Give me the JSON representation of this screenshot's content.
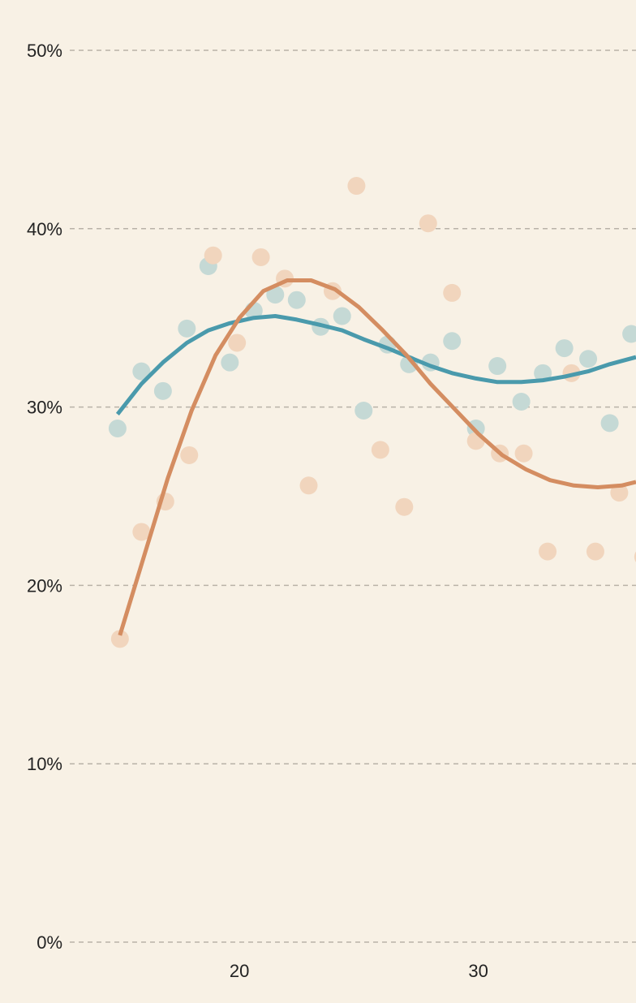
{
  "chart_data": {
    "type": "scatter",
    "title": "",
    "xlabel": "",
    "ylabel": "",
    "xlim": [
      12.9,
      36.6
    ],
    "ylim": [
      0,
      50
    ],
    "x_ticks": [
      20,
      30
    ],
    "y_ticks": [
      0,
      10,
      20,
      30,
      40,
      50
    ],
    "y_tick_format": "percent",
    "grid": "horizontal-dashed",
    "legend": "none",
    "series": [
      {
        "color": "#4a9aac",
        "point_color": "#c5d9d5",
        "points": [
          [
            14.9,
            28.8
          ],
          [
            15.9,
            32.0
          ],
          [
            16.8,
            30.9
          ],
          [
            17.8,
            34.4
          ],
          [
            18.7,
            37.9
          ],
          [
            19.6,
            32.5
          ],
          [
            20.6,
            35.4
          ],
          [
            21.5,
            36.3
          ],
          [
            22.4,
            36.0
          ],
          [
            23.4,
            34.5
          ],
          [
            24.3,
            35.1
          ],
          [
            25.2,
            29.8
          ],
          [
            26.2,
            33.5
          ],
          [
            27.1,
            32.4
          ],
          [
            28.0,
            32.5
          ],
          [
            28.9,
            33.7
          ],
          [
            29.9,
            28.8
          ],
          [
            30.8,
            32.3
          ],
          [
            31.8,
            30.3
          ],
          [
            32.7,
            31.9
          ],
          [
            33.6,
            33.3
          ],
          [
            34.6,
            32.7
          ],
          [
            35.5,
            29.1
          ],
          [
            36.4,
            34.1
          ]
        ],
        "fit": [
          [
            14.9,
            29.6
          ],
          [
            15.9,
            31.3
          ],
          [
            16.8,
            32.5
          ],
          [
            17.8,
            33.6
          ],
          [
            18.7,
            34.3
          ],
          [
            19.6,
            34.7
          ],
          [
            20.6,
            35.0
          ],
          [
            21.5,
            35.1
          ],
          [
            22.4,
            34.9
          ],
          [
            23.4,
            34.6
          ],
          [
            24.3,
            34.3
          ],
          [
            25.2,
            33.8
          ],
          [
            26.2,
            33.3
          ],
          [
            27.1,
            32.8
          ],
          [
            28.0,
            32.3
          ],
          [
            28.9,
            31.9
          ],
          [
            29.9,
            31.6
          ],
          [
            30.8,
            31.4
          ],
          [
            31.8,
            31.4
          ],
          [
            32.7,
            31.5
          ],
          [
            33.6,
            31.7
          ],
          [
            34.6,
            32.0
          ],
          [
            35.5,
            32.4
          ],
          [
            36.6,
            32.8
          ]
        ]
      },
      {
        "color": "#d48d61",
        "point_color": "#f1d5bd",
        "points": [
          [
            15.0,
            17.0
          ],
          [
            15.9,
            23.0
          ],
          [
            16.9,
            24.7
          ],
          [
            17.9,
            27.3
          ],
          [
            18.9,
            38.5
          ],
          [
            19.9,
            33.6
          ],
          [
            20.9,
            38.4
          ],
          [
            21.9,
            37.2
          ],
          [
            22.9,
            25.6
          ],
          [
            23.9,
            36.5
          ],
          [
            24.9,
            42.4
          ],
          [
            25.9,
            27.6
          ],
          [
            26.9,
            24.4
          ],
          [
            27.9,
            40.3
          ],
          [
            28.9,
            36.4
          ],
          [
            29.9,
            28.1
          ],
          [
            30.9,
            27.4
          ],
          [
            31.9,
            27.4
          ],
          [
            32.9,
            21.9
          ],
          [
            33.9,
            31.9
          ],
          [
            34.9,
            21.9
          ],
          [
            35.9,
            25.2
          ],
          [
            36.9,
            21.6
          ]
        ],
        "fit": [
          [
            15.0,
            17.2
          ],
          [
            16.0,
            21.6
          ],
          [
            17.0,
            26.0
          ],
          [
            18.0,
            29.8
          ],
          [
            19.0,
            32.9
          ],
          [
            20.0,
            35.0
          ],
          [
            21.0,
            36.5
          ],
          [
            22.0,
            37.1
          ],
          [
            23.0,
            37.1
          ],
          [
            24.0,
            36.6
          ],
          [
            25.0,
            35.6
          ],
          [
            26.0,
            34.3
          ],
          [
            27.0,
            32.9
          ],
          [
            28.0,
            31.3
          ],
          [
            29.0,
            29.9
          ],
          [
            30.0,
            28.5
          ],
          [
            31.0,
            27.3
          ],
          [
            32.0,
            26.5
          ],
          [
            33.0,
            25.9
          ],
          [
            34.0,
            25.6
          ],
          [
            35.0,
            25.5
          ],
          [
            36.0,
            25.6
          ],
          [
            36.6,
            25.8
          ]
        ]
      }
    ]
  }
}
